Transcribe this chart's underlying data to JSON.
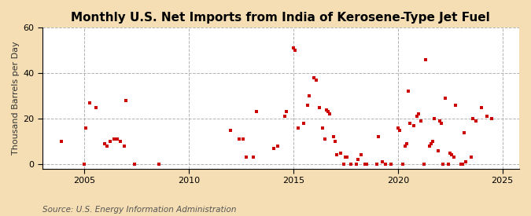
{
  "title": "Monthly U.S. Net Imports from India of Kerosene-Type Jet Fuel",
  "ylabel": "Thousand Barrels per Day",
  "source": "Source: U.S. Energy Information Administration",
  "fig_bg_color": "#f5deb3",
  "plot_bg_color": "#ffffff",
  "marker_color": "#cc0000",
  "marker": "s",
  "marker_size": 3.5,
  "xlim": [
    2003.0,
    2025.8
  ],
  "ylim": [
    -2,
    60
  ],
  "yticks": [
    0,
    20,
    40,
    60
  ],
  "xticks": [
    2005,
    2010,
    2015,
    2020,
    2025
  ],
  "title_fontsize": 11,
  "label_fontsize": 8,
  "tick_fontsize": 8,
  "source_fontsize": 7.5,
  "data": [
    [
      2003.917,
      10
    ],
    [
      2005.0,
      0
    ],
    [
      2005.083,
      16
    ],
    [
      2005.25,
      27
    ],
    [
      2005.583,
      25
    ],
    [
      2006.0,
      9
    ],
    [
      2006.083,
      8
    ],
    [
      2006.25,
      10
    ],
    [
      2006.417,
      11
    ],
    [
      2006.583,
      11
    ],
    [
      2006.75,
      10
    ],
    [
      2006.917,
      8
    ],
    [
      2007.0,
      28
    ],
    [
      2007.417,
      0
    ],
    [
      2008.583,
      0
    ],
    [
      2012.0,
      15
    ],
    [
      2012.417,
      11
    ],
    [
      2012.583,
      11
    ],
    [
      2012.75,
      3
    ],
    [
      2013.083,
      3
    ],
    [
      2013.25,
      23
    ],
    [
      2014.083,
      7
    ],
    [
      2014.25,
      8
    ],
    [
      2014.583,
      21
    ],
    [
      2014.667,
      23
    ],
    [
      2015.0,
      51
    ],
    [
      2015.083,
      50
    ],
    [
      2015.25,
      16
    ],
    [
      2015.5,
      18
    ],
    [
      2015.667,
      26
    ],
    [
      2015.75,
      30
    ],
    [
      2016.0,
      38
    ],
    [
      2016.083,
      37
    ],
    [
      2016.25,
      25
    ],
    [
      2016.417,
      16
    ],
    [
      2016.5,
      11
    ],
    [
      2016.583,
      24
    ],
    [
      2016.667,
      23
    ],
    [
      2016.75,
      22
    ],
    [
      2016.917,
      12
    ],
    [
      2017.0,
      10
    ],
    [
      2017.083,
      4
    ],
    [
      2017.25,
      5
    ],
    [
      2017.417,
      0
    ],
    [
      2017.5,
      3
    ],
    [
      2017.583,
      3
    ],
    [
      2017.75,
      0
    ],
    [
      2018.0,
      0
    ],
    [
      2018.083,
      2
    ],
    [
      2018.25,
      4
    ],
    [
      2018.417,
      0
    ],
    [
      2018.5,
      0
    ],
    [
      2019.0,
      0
    ],
    [
      2019.083,
      12
    ],
    [
      2019.25,
      1
    ],
    [
      2019.417,
      0
    ],
    [
      2019.667,
      0
    ],
    [
      2020.0,
      16
    ],
    [
      2020.083,
      15
    ],
    [
      2020.25,
      0
    ],
    [
      2020.333,
      8
    ],
    [
      2020.417,
      9
    ],
    [
      2020.5,
      32
    ],
    [
      2020.583,
      18
    ],
    [
      2020.75,
      17
    ],
    [
      2020.917,
      21
    ],
    [
      2021.0,
      22
    ],
    [
      2021.083,
      19
    ],
    [
      2021.25,
      0
    ],
    [
      2021.333,
      46
    ],
    [
      2021.5,
      8
    ],
    [
      2021.583,
      9
    ],
    [
      2021.667,
      10
    ],
    [
      2021.75,
      20
    ],
    [
      2021.917,
      6
    ],
    [
      2022.0,
      19
    ],
    [
      2022.083,
      18
    ],
    [
      2022.167,
      0
    ],
    [
      2022.25,
      29
    ],
    [
      2022.417,
      0
    ],
    [
      2022.5,
      5
    ],
    [
      2022.583,
      4
    ],
    [
      2022.667,
      3
    ],
    [
      2022.75,
      26
    ],
    [
      2023.0,
      0
    ],
    [
      2023.083,
      0
    ],
    [
      2023.167,
      14
    ],
    [
      2023.25,
      1
    ],
    [
      2023.5,
      3
    ],
    [
      2023.583,
      20
    ],
    [
      2023.75,
      19
    ],
    [
      2024.0,
      25
    ],
    [
      2024.25,
      21
    ],
    [
      2024.5,
      20
    ]
  ]
}
